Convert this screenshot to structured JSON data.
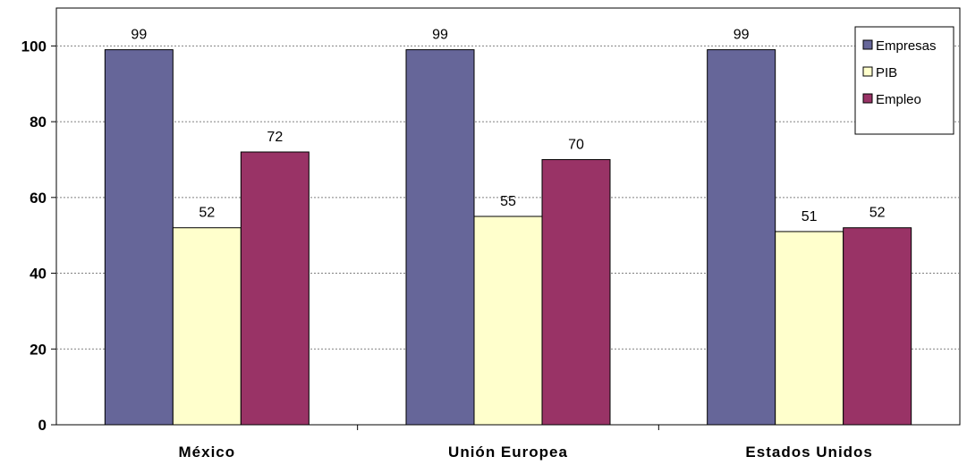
{
  "chart_data": {
    "type": "bar",
    "categories": [
      "México",
      "Unión Europea",
      "Estados Unidos"
    ],
    "series": [
      {
        "name": "Empresas",
        "values": [
          99,
          99,
          99
        ],
        "label_values": [
          "99",
          "99",
          "99"
        ],
        "color": "#666699"
      },
      {
        "name": "PIB",
        "values": [
          52,
          55,
          51
        ],
        "label_values": [
          "52",
          "55",
          "51"
        ],
        "color": "#ffffcc"
      },
      {
        "name": "Empleo",
        "values": [
          72,
          70,
          52
        ],
        "label_values": [
          "72",
          "70",
          "52"
        ],
        "color": "#993366"
      }
    ],
    "title": "",
    "xlabel": "",
    "ylabel": "",
    "ylim": [
      0,
      110
    ],
    "yticks": [
      0,
      20,
      40,
      60,
      80,
      100
    ],
    "ytick_labels": [
      "0",
      "20",
      "40",
      "60",
      "80",
      "100"
    ],
    "grid": true,
    "legend_position": "top-right"
  }
}
